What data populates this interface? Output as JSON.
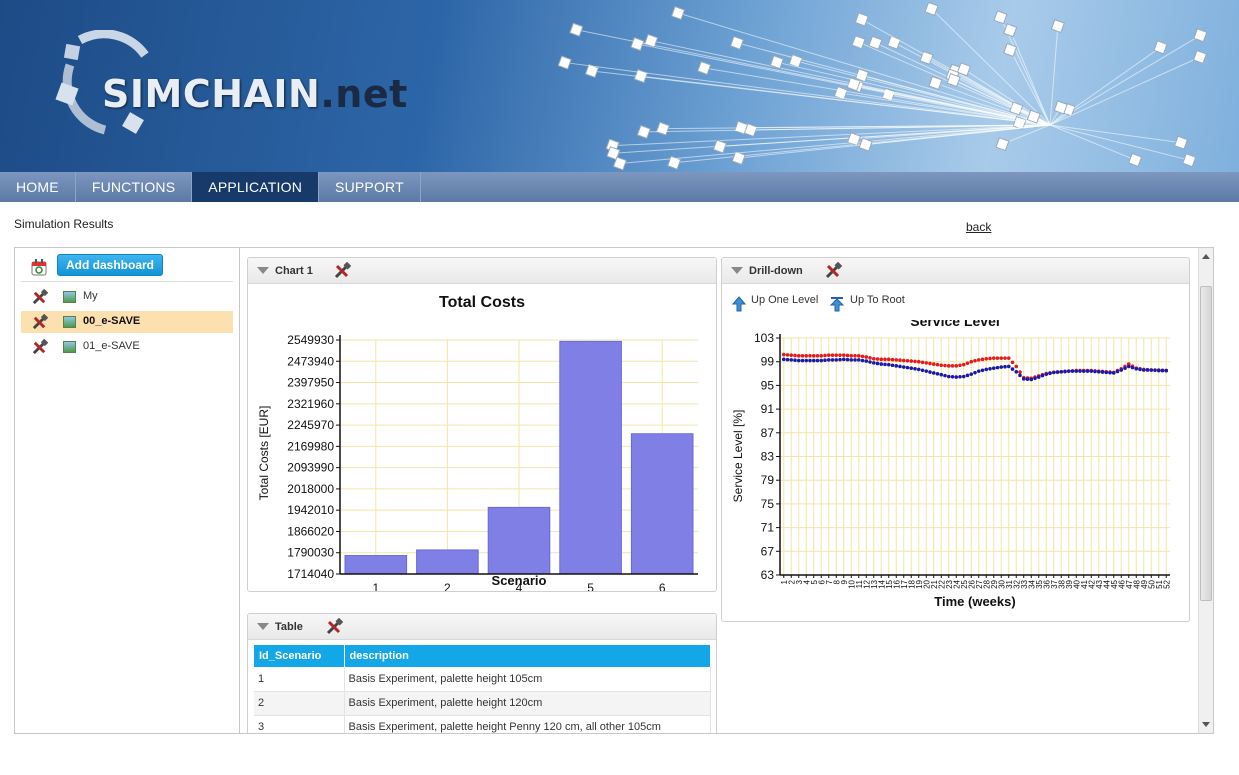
{
  "header": {
    "logo_primary": "SIMCHAIN",
    "logo_secondary": ".net"
  },
  "nav": {
    "items": [
      "HOME",
      "FUNCTIONS",
      "APPLICATION",
      "SUPPORT"
    ],
    "active": "APPLICATION"
  },
  "page": {
    "title": "Simulation Results",
    "back_label": "back"
  },
  "sidebar": {
    "add_button": "Add dashboard",
    "items": [
      {
        "label": "My",
        "selected": false
      },
      {
        "label": "00_e-SAVE",
        "selected": true
      },
      {
        "label": "01_e-SAVE",
        "selected": false
      }
    ]
  },
  "panels": {
    "chart1": {
      "header": "Chart 1"
    },
    "drilldown": {
      "header": "Drill-down",
      "up_one": "Up One Level",
      "up_root": "Up To Root"
    },
    "table": {
      "header": "Table"
    }
  },
  "table": {
    "columns": [
      "Id_Scenario",
      "description"
    ],
    "rows": [
      [
        "1",
        "Basis Experiment, palette height 105cm"
      ],
      [
        "2",
        "Basis Experiment, palette height 120cm"
      ],
      [
        "3",
        "Basis Experiment, palette height Penny 120 cm, all other 105cm"
      ]
    ]
  },
  "colors": {
    "accent": "#14a7e8",
    "nav_active": "#173a6b",
    "bar": "#7f7fe6",
    "series_red": "#e21b1b",
    "series_blue": "#1a1aa8",
    "grid": "#f2e6a8"
  },
  "chart_data": [
    {
      "type": "bar",
      "title": "Total Costs",
      "xlabel": "Scenario",
      "ylabel": "Total Costs [EUR]",
      "categories": [
        "1",
        "2",
        "4",
        "5",
        "6"
      ],
      "values": [
        1780000,
        1800000,
        1952000,
        2545000,
        2215000
      ],
      "yticks": [
        "1714040",
        "1790030",
        "1866020",
        "1942010",
        "2018000",
        "2093990",
        "2169980",
        "2245970",
        "2321960",
        "2397950",
        "2473940",
        "2549930"
      ],
      "ylim": [
        1714040,
        2549930
      ],
      "grid": true
    },
    {
      "type": "line",
      "title": "Service Level",
      "xlabel": "Time (weeks)",
      "ylabel": "Service Level [%]",
      "x": [
        1,
        2,
        3,
        4,
        5,
        6,
        7,
        8,
        9,
        10,
        11,
        12,
        13,
        14,
        15,
        16,
        17,
        18,
        19,
        20,
        21,
        22,
        23,
        24,
        25,
        26,
        27,
        28,
        29,
        30,
        31,
        32,
        33,
        34,
        35,
        36,
        37,
        38,
        39,
        40,
        41,
        42,
        43,
        44,
        45,
        46,
        47,
        48,
        49,
        50,
        51,
        52
      ],
      "yticks": [
        "63",
        "67",
        "71",
        "75",
        "79",
        "83",
        "87",
        "91",
        "95",
        "99",
        "103"
      ],
      "ylim": [
        63,
        103
      ],
      "grid": true,
      "series": [
        {
          "color": "#e21b1b",
          "values": [
            100.2,
            100.1,
            100.0,
            100.0,
            100.0,
            100.0,
            100.1,
            100.1,
            100.1,
            100.0,
            100.0,
            99.8,
            99.5,
            99.4,
            99.4,
            99.3,
            99.2,
            99.1,
            99.0,
            98.8,
            98.6,
            98.4,
            98.3,
            98.3,
            98.5,
            99.0,
            99.3,
            99.5,
            99.6,
            99.6,
            99.6,
            98.2,
            96.3,
            96.2,
            96.6,
            97.0,
            97.2,
            97.3,
            97.4,
            97.5,
            97.5,
            97.5,
            97.4,
            97.3,
            97.2,
            97.8,
            98.6,
            97.9,
            97.7,
            97.6,
            97.6,
            97.5
          ]
        },
        {
          "color": "#1a1aa8",
          "values": [
            99.4,
            99.3,
            99.2,
            99.2,
            99.2,
            99.2,
            99.3,
            99.3,
            99.4,
            99.3,
            99.3,
            99.1,
            98.8,
            98.6,
            98.5,
            98.3,
            98.1,
            97.9,
            97.7,
            97.4,
            97.1,
            96.8,
            96.5,
            96.4,
            96.5,
            96.9,
            97.4,
            97.7,
            97.9,
            98.1,
            98.2,
            97.3,
            96.1,
            96.0,
            96.4,
            96.9,
            97.2,
            97.3,
            97.4,
            97.4,
            97.4,
            97.4,
            97.3,
            97.2,
            97.1,
            97.6,
            98.2,
            97.8,
            97.6,
            97.6,
            97.5,
            97.5
          ]
        }
      ]
    }
  ]
}
